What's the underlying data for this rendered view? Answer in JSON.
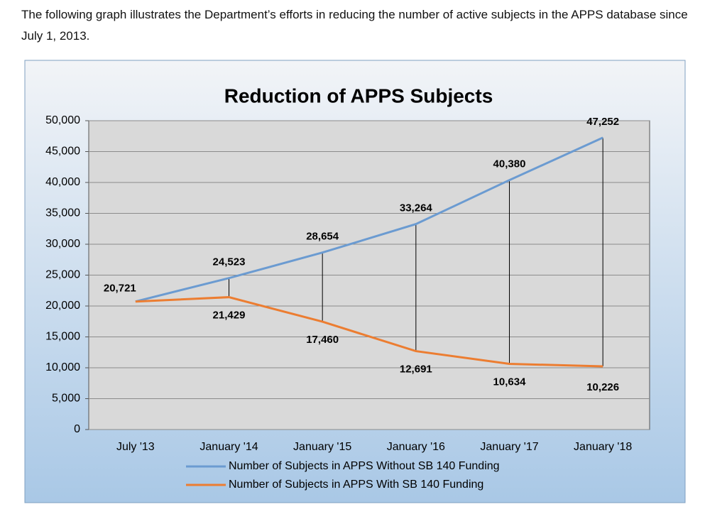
{
  "intro_text": "The following graph illustrates the Department’s efforts in reducing the number of active subjects in the APPS database since July 1, 2013.",
  "chart_data": {
    "type": "line",
    "title": "Reduction of APPS Subjects",
    "categories": [
      "July '13",
      "January '14",
      "January '15",
      "January '16",
      "January '17",
      "January '18"
    ],
    "series": [
      {
        "name": "Number of Subjects in APPS Without SB 140 Funding",
        "color": "#6b9bd1",
        "values": [
          20721,
          24523,
          28654,
          33264,
          40380,
          47252
        ],
        "value_labels": [
          "20,721",
          "24,523",
          "28,654",
          "33,264",
          "40,380",
          "47,252"
        ]
      },
      {
        "name": "Number of Subjects in APPS With SB 140 Funding",
        "color": "#ec7d31",
        "values": [
          20721,
          21429,
          17460,
          12691,
          10634,
          10226
        ],
        "value_labels": [
          null,
          "21,429",
          "17,460",
          "12,691",
          "10,634",
          "10,226"
        ]
      }
    ],
    "ylim": [
      0,
      50000
    ],
    "yticks": [
      0,
      {
        "value": 5000,
        "label": "5,000"
      },
      {
        "value": 10000,
        "label": "10,000"
      },
      {
        "value": 15000,
        "label": "15,000"
      },
      {
        "value": 20000,
        "label": "20,000"
      },
      {
        "value": 25000,
        "label": "25,000"
      },
      {
        "value": 30000,
        "label": "30,000"
      },
      {
        "value": 35000,
        "label": "35,000"
      },
      {
        "value": 40000,
        "label": "40,000"
      },
      {
        "value": 45000,
        "label": "45,000"
      },
      {
        "value": 50000,
        "label": "50,000"
      }
    ],
    "grid": true,
    "legend": "bottom"
  }
}
